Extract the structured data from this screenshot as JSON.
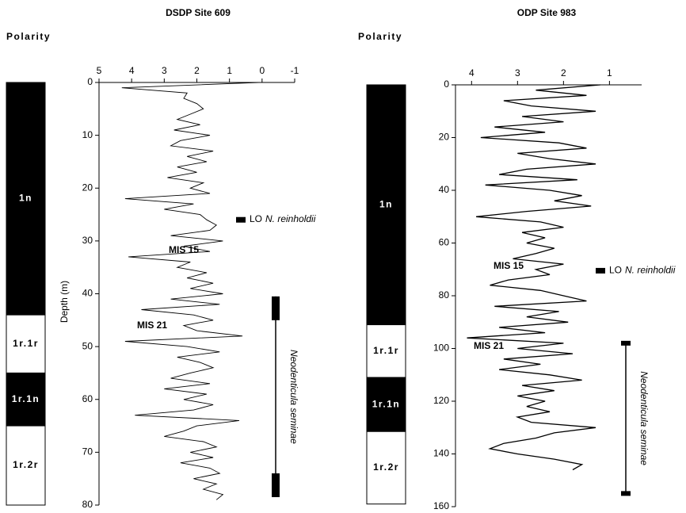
{
  "chart_data": [
    {
      "type": "line",
      "title": "DSDP Site 609",
      "polarity_label": "Polarity",
      "ylabel": "Depth (m)",
      "xlim": [
        5,
        -1
      ],
      "xticks": [
        5,
        4,
        3,
        2,
        1,
        0,
        -1
      ],
      "ylim": [
        0,
        80
      ],
      "yticks": [
        0,
        10,
        20,
        30,
        40,
        50,
        60,
        70,
        80
      ],
      "color": "#000000",
      "polarity": [
        {
          "label": "1n",
          "top": 0,
          "bottom": 44
        },
        {
          "label": "1r.1r",
          "top": 44,
          "bottom": 55
        },
        {
          "label": "1r.1n",
          "top": 55,
          "bottom": 65
        },
        {
          "label": "1r.2r",
          "top": 65,
          "bottom": 80
        }
      ],
      "depth": [
        0,
        1,
        2,
        3,
        4,
        5,
        6,
        7,
        8,
        9,
        10,
        11,
        12,
        13,
        14,
        15,
        16,
        17,
        18,
        19,
        20,
        21,
        22,
        23,
        24,
        25,
        26,
        27,
        28,
        29,
        30,
        31,
        32,
        33,
        34,
        35,
        36,
        37,
        38,
        39,
        40,
        41,
        42,
        43,
        44,
        45,
        46,
        47,
        48,
        49,
        50,
        51,
        52,
        53,
        54,
        55,
        56,
        57,
        58,
        59,
        60,
        61,
        62,
        63,
        64,
        65,
        66,
        67,
        68,
        69,
        70,
        71,
        72,
        73,
        74,
        75,
        76,
        77,
        78,
        79
      ],
      "values": [
        0.1,
        4.3,
        2.3,
        2.4,
        2.0,
        1.8,
        2.2,
        2.6,
        1.9,
        2.7,
        1.6,
        2.5,
        2.8,
        1.5,
        2.3,
        1.7,
        2.6,
        2.0,
        2.9,
        1.8,
        2.2,
        1.6,
        4.2,
        2.1,
        3.0,
        1.9,
        1.7,
        1.4,
        1.6,
        2.8,
        1.2,
        2.4,
        1.6,
        4.1,
        2.2,
        2.6,
        1.7,
        2.3,
        1.5,
        2.2,
        1.2,
        2.8,
        1.3,
        3.7,
        2.1,
        1.5,
        2.4,
        2.0,
        0.6,
        4.2,
        2.3,
        1.3,
        2.6,
        1.9,
        1.5,
        2.2,
        2.8,
        1.6,
        3.0,
        1.7,
        2.4,
        1.5,
        2.1,
        3.9,
        0.7,
        2.0,
        2.4,
        3.0,
        1.8,
        1.4,
        2.2,
        1.5,
        2.5,
        1.6,
        1.3,
        2.1,
        1.4,
        1.8,
        1.2,
        1.4
      ],
      "annotations": [
        {
          "text": "MIS 15"
        },
        {
          "text": "MIS 21"
        }
      ],
      "lo": {
        "prefix": "LO",
        "taxon": "N. reinholdii",
        "depth": 26
      },
      "range": {
        "taxon": "Neodenticula seminae",
        "top": 40.5,
        "bottom": 78.5
      }
    },
    {
      "type": "line",
      "title": "ODP Site 983",
      "polarity_label": "Polarity",
      "xlim": [
        4.35,
        0.3
      ],
      "xticks": [
        4,
        3,
        2,
        1
      ],
      "ylim": [
        0,
        160
      ],
      "yticks": [
        0,
        20,
        40,
        60,
        80,
        100,
        120,
        140,
        160
      ],
      "color": "#000000",
      "polarity": [
        {
          "label": "1n",
          "top": 0,
          "bottom": 91
        },
        {
          "label": "1r.1r",
          "top": 91,
          "bottom": 111
        },
        {
          "label": "1r.1n",
          "top": 111,
          "bottom": 131.5
        },
        {
          "label": "1r.2r",
          "top": 131.5,
          "bottom": 159
        }
      ],
      "depth": [
        0,
        2,
        4,
        6,
        8,
        10,
        12,
        14,
        16,
        18,
        20,
        22,
        24,
        26,
        28,
        30,
        32,
        34,
        36,
        38,
        40,
        42,
        44,
        46,
        48,
        50,
        52,
        54,
        56,
        58,
        60,
        62,
        64,
        66,
        68,
        70,
        72,
        74,
        76,
        78,
        80,
        82,
        84,
        86,
        88,
        90,
        92,
        94,
        96,
        98,
        100,
        102,
        104,
        106,
        108,
        110,
        112,
        114,
        116,
        118,
        120,
        122,
        124,
        126,
        128,
        130,
        132,
        134,
        136,
        138,
        140,
        142,
        144,
        146
      ],
      "values": [
        1.2,
        2.6,
        1.5,
        3.3,
        2.7,
        1.3,
        2.9,
        2.0,
        3.5,
        2.4,
        3.8,
        2.1,
        1.5,
        3.0,
        2.3,
        1.3,
        2.8,
        3.4,
        1.7,
        3.7,
        2.3,
        1.6,
        2.2,
        1.4,
        2.8,
        3.9,
        2.5,
        2.0,
        2.9,
        2.4,
        2.8,
        2.2,
        2.6,
        3.1,
        2.0,
        2.6,
        2.3,
        3.2,
        3.6,
        2.5,
        2.0,
        1.5,
        3.5,
        2.1,
        2.8,
        1.9,
        3.4,
        2.4,
        4.1,
        2.0,
        3.0,
        1.8,
        3.3,
        2.5,
        3.4,
        2.3,
        1.6,
        2.9,
        2.2,
        3.0,
        2.4,
        2.8,
        2.3,
        3.0,
        2.7,
        1.3,
        2.2,
        2.6,
        3.3,
        3.6,
        3.0,
        2.2,
        1.6,
        1.8
      ],
      "annotations": [
        {
          "text": "MIS 15"
        },
        {
          "text": "MIS 21"
        }
      ],
      "lo": {
        "prefix": "LO",
        "taxon": "N. reinholdii",
        "depth": 70.5
      },
      "range": {
        "taxon": "Neodenticula seminae",
        "top": 98,
        "bottom": 155
      }
    }
  ]
}
